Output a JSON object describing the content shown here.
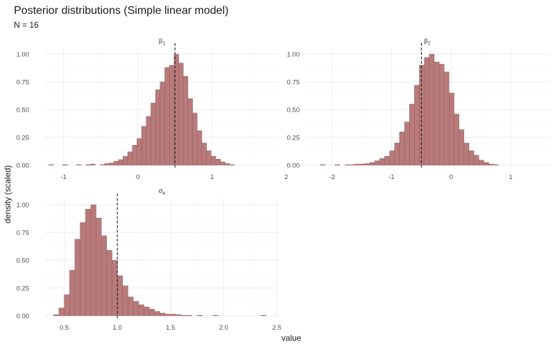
{
  "chart_data": {
    "type": "bar",
    "title": "Posterior distributions (Simple linear model)",
    "subtitle": "N = 16",
    "xlabel": "value",
    "ylabel": "density (scaled)",
    "grid": true,
    "legend": "none",
    "bar_color": "#b87a7a",
    "bar_outline": "#8a5656",
    "reference_line_color": "#1a1a1a",
    "panels": [
      {
        "label": "β",
        "label_sub": "1",
        "xlim": [
          -1.25,
          1.9
        ],
        "ylim": [
          0,
          1.05
        ],
        "xticks": [
          -1,
          0,
          1,
          2
        ],
        "xtick_labels": [
          "-1",
          "0",
          "1",
          "2"
        ],
        "yticks": [
          0,
          0.25,
          0.5,
          0.75,
          1
        ],
        "ytick_labels": [
          "0.00",
          "0.25",
          "0.50",
          "0.75",
          "1.00"
        ],
        "reference_line": 0.5,
        "bin_width": 0.0625,
        "bin_start": -1.2,
        "values": [
          0.005,
          0.0,
          0.0,
          0.005,
          0.0,
          0.0,
          0.005,
          0.0,
          0.005,
          0.01,
          0.0,
          0.005,
          0.015,
          0.02,
          0.035,
          0.05,
          0.08,
          0.12,
          0.18,
          0.24,
          0.35,
          0.44,
          0.56,
          0.68,
          0.75,
          0.88,
          0.9,
          1.0,
          0.92,
          0.8,
          0.6,
          0.47,
          0.31,
          0.2,
          0.13,
          0.08,
          0.055,
          0.03,
          0.015,
          0.005
        ]
      },
      {
        "label": "β",
        "label_sub": "2",
        "xlim": [
          -2.45,
          1.65
        ],
        "ylim": [
          0,
          1.05
        ],
        "xticks": [
          -2,
          -1,
          0,
          1
        ],
        "xtick_labels": [
          "-2",
          "-1",
          "0",
          "1"
        ],
        "yticks": [
          0,
          0.25,
          0.5,
          0.75,
          1
        ],
        "ytick_labels": [
          "0.00",
          "0.25",
          "0.50",
          "0.75",
          "1.00"
        ],
        "reference_line": -0.5,
        "bin_width": 0.0833,
        "bin_start": -2.2,
        "values": [
          0.005,
          0.0,
          0.0,
          0.005,
          0.0,
          0.005,
          0.005,
          0.01,
          0.01,
          0.015,
          0.025,
          0.04,
          0.06,
          0.08,
          0.13,
          0.2,
          0.3,
          0.39,
          0.55,
          0.72,
          0.9,
          0.97,
          1.0,
          0.93,
          0.91,
          0.84,
          0.65,
          0.46,
          0.32,
          0.2,
          0.13,
          0.09,
          0.045,
          0.025,
          0.01,
          0.005
        ]
      },
      {
        "label": "σ",
        "label_sub": "e",
        "xlim": [
          0.32,
          2.52
        ],
        "ylim": [
          0,
          1.05
        ],
        "xticks": [
          0.5,
          1.0,
          1.5,
          2.0,
          2.5
        ],
        "xtick_labels": [
          "0.5",
          "1.0",
          "1.5",
          "2.0",
          "2.5"
        ],
        "yticks": [
          0,
          0.25,
          0.5,
          0.75,
          1
        ],
        "ytick_labels": [
          "0.00",
          "0.25",
          "0.50",
          "0.75",
          "1.00"
        ],
        "reference_line": 1.0,
        "bin_width": 0.05,
        "bin_start": 0.4,
        "values": [
          0.01,
          0.07,
          0.19,
          0.41,
          0.69,
          0.84,
          0.96,
          1.0,
          0.88,
          0.72,
          0.59,
          0.5,
          0.36,
          0.27,
          0.17,
          0.13,
          0.1,
          0.08,
          0.06,
          0.04,
          0.025,
          0.015,
          0.015,
          0.01,
          0.005,
          0.005,
          0.0,
          0.005,
          0.0,
          0.0,
          0.005,
          0.0,
          0.0,
          0.0,
          0.0,
          0.0,
          0.0,
          0.0,
          0.0,
          0.005
        ]
      }
    ]
  }
}
